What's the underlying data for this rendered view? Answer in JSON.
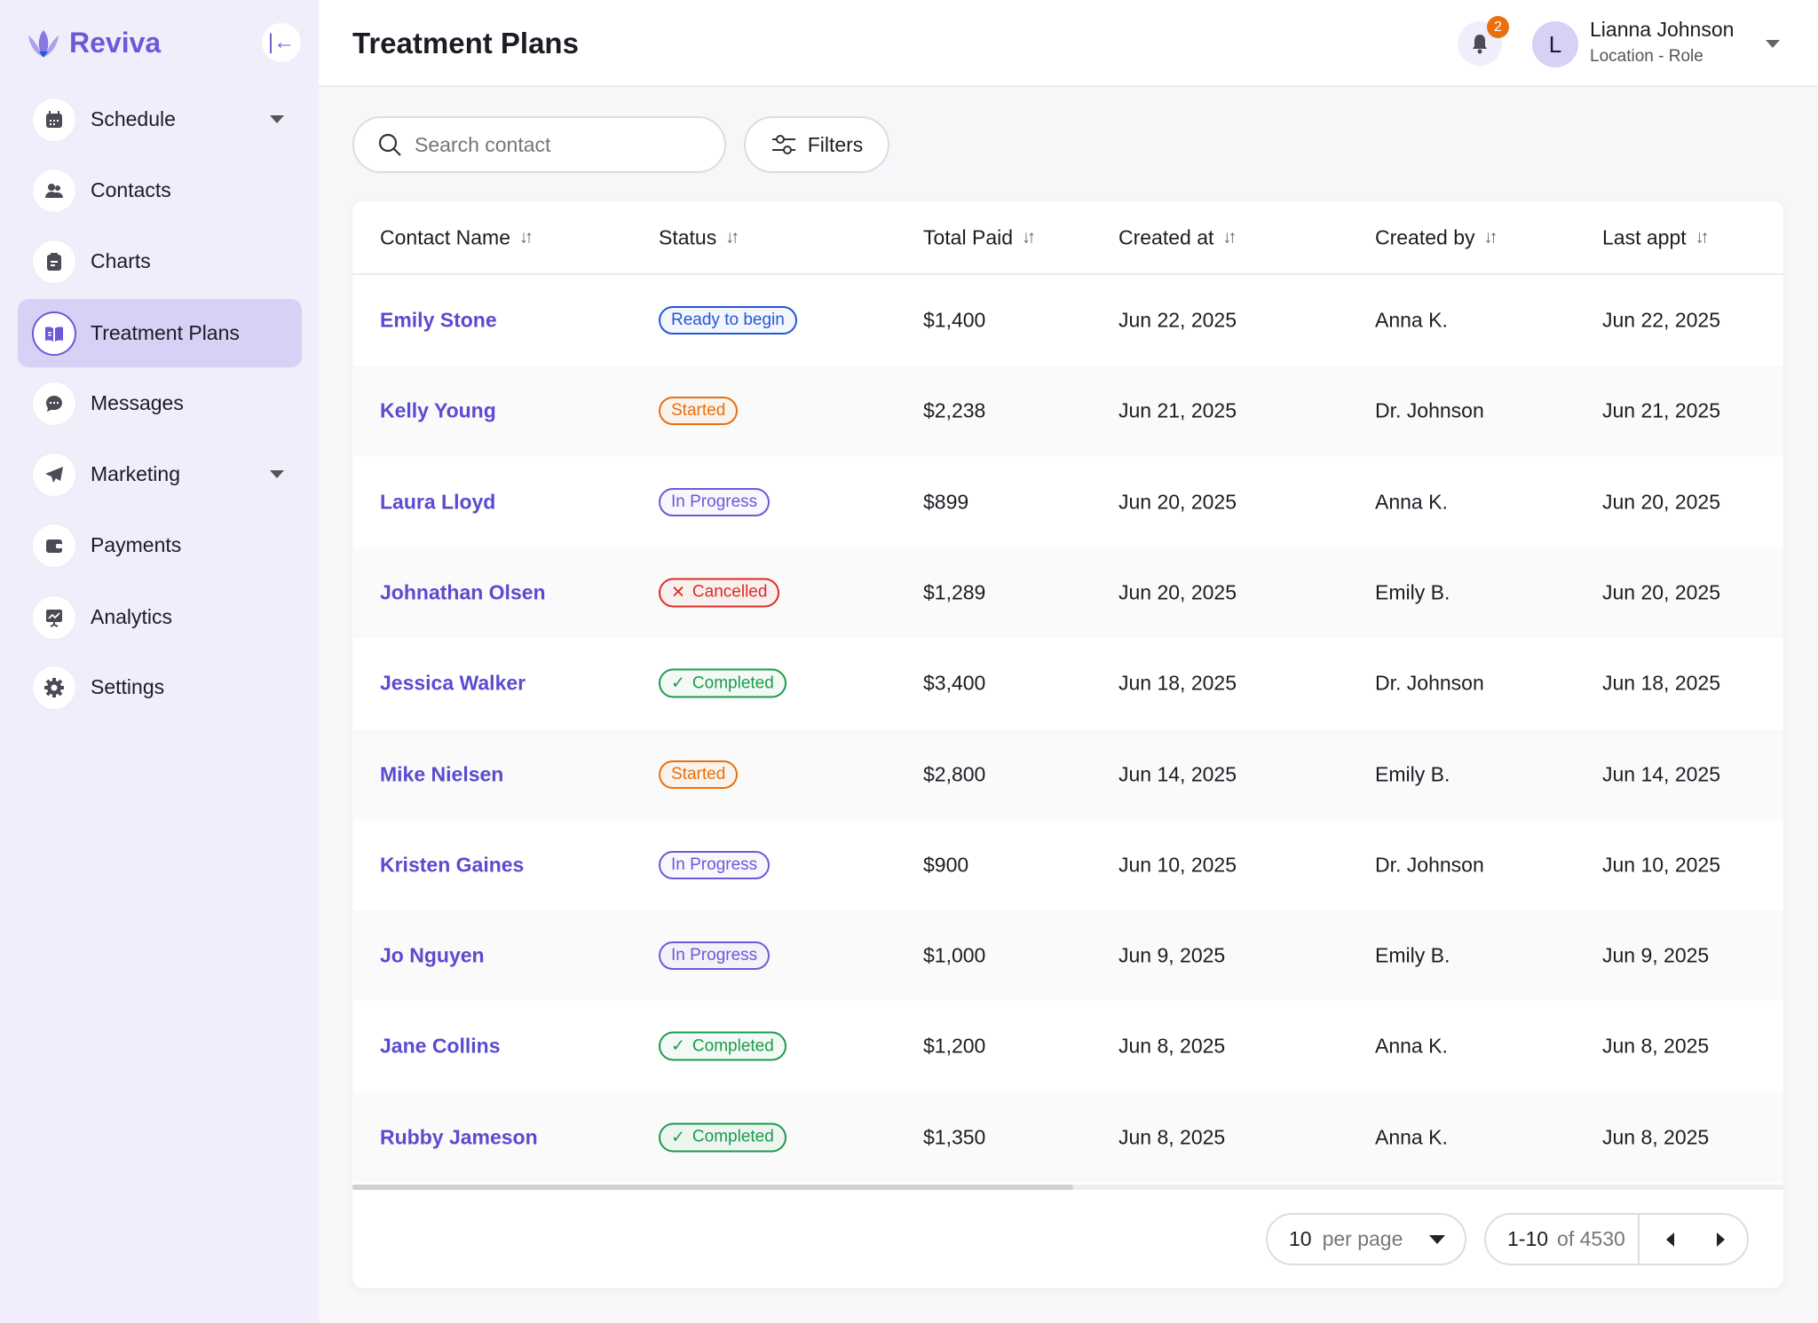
{
  "brand": {
    "name": "Reviva"
  },
  "sidebar": {
    "items": [
      {
        "label": "Schedule",
        "icon": "calendar-icon",
        "has_caret": true
      },
      {
        "label": "Contacts",
        "icon": "users-icon"
      },
      {
        "label": "Charts",
        "icon": "clipboard-icon"
      },
      {
        "label": "Treatment Plans",
        "icon": "book-icon",
        "active": true
      },
      {
        "label": "Messages",
        "icon": "chat-icon"
      },
      {
        "label": "Marketing",
        "icon": "send-icon",
        "has_caret": true
      },
      {
        "label": "Payments",
        "icon": "wallet-icon"
      },
      {
        "label": "Analytics",
        "icon": "chart-icon"
      },
      {
        "label": "Settings",
        "icon": "gear-icon"
      }
    ]
  },
  "header": {
    "title": "Treatment Plans",
    "notifications": "2",
    "user": {
      "initial": "L",
      "name": "Lianna Johnson",
      "role": "Location - Role"
    }
  },
  "toolbar": {
    "search_placeholder": "Search contact",
    "filters_label": "Filters"
  },
  "table": {
    "columns": [
      "Contact Name",
      "Status",
      "Total Paid",
      "Created at",
      "Created by",
      "Last appt"
    ],
    "rows": [
      [
        "Emily Stone",
        "Ready to begin",
        "$1,400",
        "Jun 22, 2025",
        "Anna K.",
        "Jun 22, 2025"
      ],
      [
        "Kelly Young",
        "Started",
        "$2,238",
        "Jun 21, 2025",
        "Dr. Johnson",
        "Jun 21, 2025"
      ],
      [
        "Laura Lloyd",
        "In Progress",
        "$899",
        "Jun 20, 2025",
        "Anna K.",
        "Jun 20, 2025"
      ],
      [
        "Johnathan Olsen",
        "Cancelled",
        "$1,289",
        "Jun 20, 2025",
        "Emily B.",
        "Jun 20, 2025"
      ],
      [
        "Jessica Walker",
        "Completed",
        "$3,400",
        "Jun 18, 2025",
        "Dr. Johnson",
        "Jun 18, 2025"
      ],
      [
        "Mike Nielsen",
        "Started",
        "$2,800",
        "Jun 14, 2025",
        "Emily B.",
        "Jun 14, 2025"
      ],
      [
        "Kristen Gaines",
        "In Progress",
        "$900",
        "Jun 10, 2025",
        "Dr. Johnson",
        "Jun 10, 2025"
      ],
      [
        "Jo Nguyen",
        "In Progress",
        "$1,000",
        "Jun 9, 2025",
        "Emily B.",
        "Jun 9, 2025"
      ],
      [
        "Jane Collins",
        "Completed",
        "$1,200",
        "Jun 8, 2025",
        "Anna K.",
        "Jun 8, 2025"
      ],
      [
        "Rubby Jameson",
        "Completed",
        "$1,350",
        "Jun 8, 2025",
        "Anna K.",
        "Jun 8, 2025"
      ]
    ]
  },
  "status_colors": {
    "Ready to begin": "#2457d6",
    "Started": "#e8700f",
    "In Progress": "#6a5ad8",
    "Cancelled": "#d92d20",
    "Completed": "#1a9b4a"
  },
  "pagination": {
    "per_page_value": "10",
    "per_page_label": "per page",
    "range": "1-10",
    "of_label": "of 4530"
  }
}
